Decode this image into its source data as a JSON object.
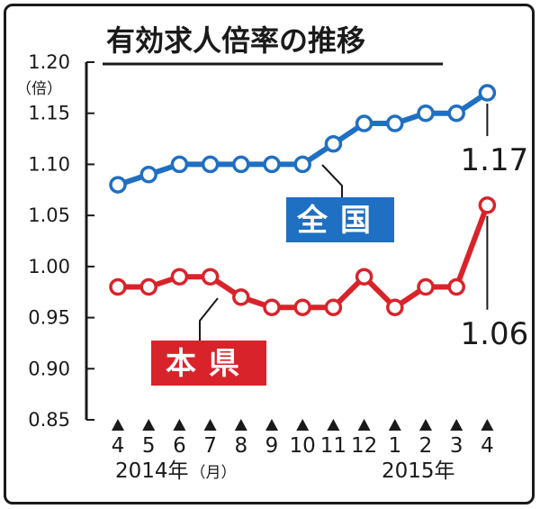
{
  "chart_data": {
    "type": "line",
    "title": "有効求人倍率の推移",
    "y_unit": "（倍）",
    "ylim": [
      0.85,
      1.2
    ],
    "y_ticks": [
      "1.20",
      "1.15",
      "1.10",
      "1.05",
      "1.00",
      "0.95",
      "0.90",
      "0.85"
    ],
    "y_tick_values": [
      1.2,
      1.15,
      1.1,
      1.05,
      1.0,
      0.95,
      0.9,
      0.85
    ],
    "categories": [
      "4",
      "5",
      "6",
      "7",
      "8",
      "9",
      "10",
      "11",
      "12",
      "1",
      "2",
      "3",
      "4"
    ],
    "year_labels": {
      "start": "2014年",
      "start_unit": "（月）",
      "end": "2015年"
    },
    "series": [
      {
        "name": "全国",
        "color": "#1f6fc2",
        "values": [
          1.08,
          1.09,
          1.1,
          1.1,
          1.1,
          1.1,
          1.1,
          1.12,
          1.14,
          1.14,
          1.15,
          1.15,
          1.17
        ],
        "last_label": "1.17"
      },
      {
        "name": "本県",
        "color": "#d9232a",
        "values": [
          0.98,
          0.98,
          0.99,
          0.99,
          0.97,
          0.96,
          0.96,
          0.96,
          0.99,
          0.96,
          0.98,
          0.98,
          1.06
        ],
        "last_label": "1.06"
      }
    ],
    "grid": false,
    "legend": "inline"
  }
}
